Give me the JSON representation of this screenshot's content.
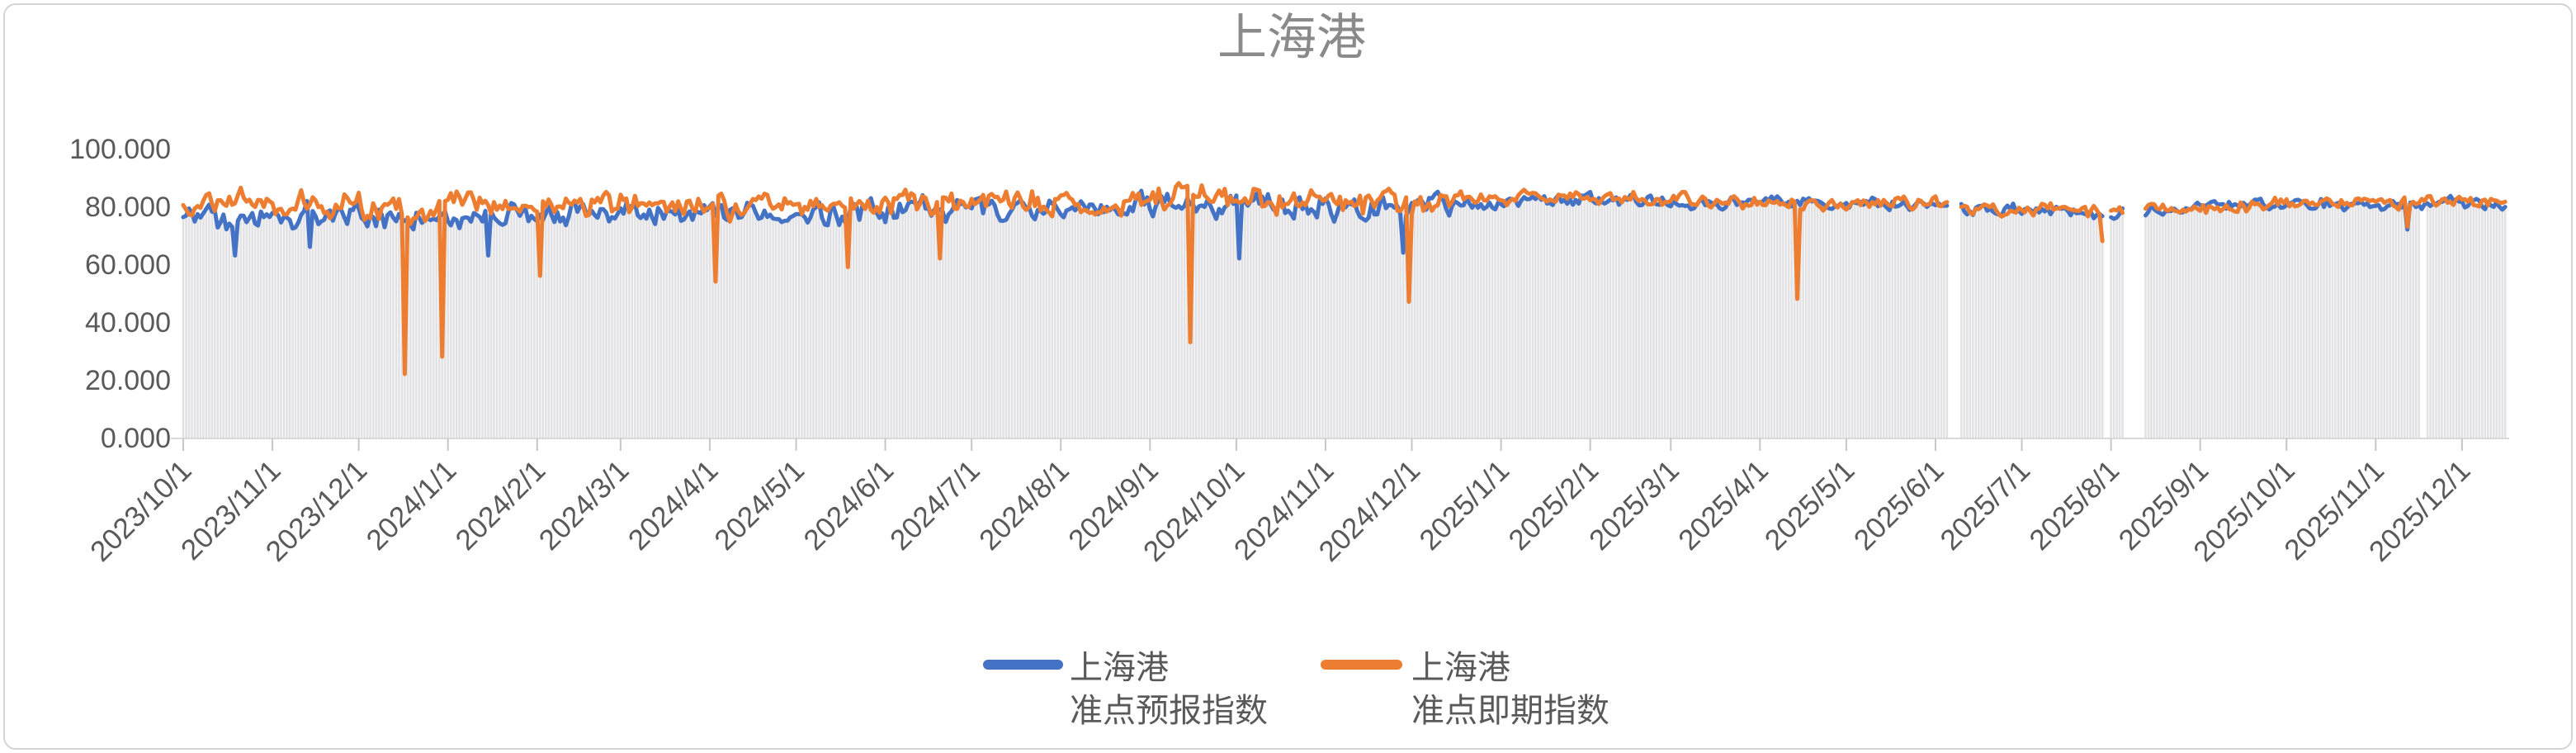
{
  "title": "上海港",
  "colors": {
    "forecast_blue": "#4472C4",
    "spot_orange": "#ED7D31",
    "bar_fill": "#E2E2E4",
    "bar_gap_white": "#FFFFFF",
    "axis_line": "#D9D9D9",
    "tick_mark": "#C6C6C6",
    "text_gray": "#595959",
    "title_gray": "#8A8A8A",
    "border_gray": "#D4D4D4"
  },
  "legend": {
    "items": [
      {
        "line1": "上海港",
        "line2": "准点预报指数",
        "color": "#4472C4"
      },
      {
        "line1": "上海港",
        "line2": "准点即期指数",
        "color": "#ED7D31"
      }
    ]
  },
  "chart_data": {
    "type": "line",
    "title": "上海港",
    "frequency": "daily",
    "x_start": "2023/10/1",
    "x_end": "2025/12/16",
    "ylim": [
      0,
      100
    ],
    "y_ticks": [
      100,
      80,
      60,
      40,
      20,
      0
    ],
    "y_tick_labels": [
      "100.000",
      "80.000",
      "60.000",
      "40.000",
      "20.000",
      "0.000"
    ],
    "x_tick_labels": [
      "2023/10/1",
      "2023/11/1",
      "2023/12/1",
      "2024/1/1",
      "2024/2/1",
      "2024/3/1",
      "2024/4/1",
      "2024/5/1",
      "2024/6/1",
      "2024/7/1",
      "2024/8/1",
      "2024/9/1",
      "2024/10/1",
      "2024/11/1",
      "2024/12/1",
      "2025/1/1",
      "2025/2/1",
      "2025/3/1",
      "2025/4/1",
      "2025/5/1",
      "2025/6/1",
      "2025/7/1",
      "2025/8/1",
      "2025/9/1",
      "2025/10/1",
      "2025/11/1",
      "2025/12/1"
    ],
    "legend_position": "bottom-center",
    "grid": false,
    "series": [
      {
        "key": "forecast",
        "name": "上海港 准点预报指数",
        "color": "#4472C4"
      },
      {
        "key": "spot",
        "name": "上海港 准点即期指数",
        "color": "#ED7D31"
      }
    ],
    "background_columns": "light gray striped daily columns from 0 up to the lower of the two line values",
    "monthly_anchors": [
      {
        "month": "2023/10",
        "forecast": 76,
        "spot": 81
      },
      {
        "month": "2023/11",
        "forecast": 78,
        "spot": 81
      },
      {
        "month": "2023/12",
        "forecast": 77,
        "spot": 79
      },
      {
        "month": "2024/1",
        "forecast": 77,
        "spot": 80
      },
      {
        "month": "2024/2",
        "forecast": 78,
        "spot": 80
      },
      {
        "month": "2024/3",
        "forecast": 79,
        "spot": 81
      },
      {
        "month": "2024/4",
        "forecast": 77,
        "spot": 80
      },
      {
        "month": "2024/5",
        "forecast": 78,
        "spot": 81
      },
      {
        "month": "2024/6",
        "forecast": 79,
        "spot": 81
      },
      {
        "month": "2024/7",
        "forecast": 80,
        "spot": 82
      },
      {
        "month": "2024/8",
        "forecast": 80,
        "spot": 81
      },
      {
        "month": "2024/9",
        "forecast": 81,
        "spot": 82
      },
      {
        "month": "2024/10",
        "forecast": 81,
        "spot": 83
      },
      {
        "month": "2024/11",
        "forecast": 79,
        "spot": 80
      },
      {
        "month": "2024/12",
        "forecast": 81,
        "spot": 82
      },
      {
        "month": "2025/1",
        "forecast": 82,
        "spot": 83
      },
      {
        "month": "2025/2",
        "forecast": 82.5,
        "spot": 83
      },
      {
        "month": "2025/3",
        "forecast": 81,
        "spot": 81.5
      },
      {
        "month": "2025/4",
        "forecast": 81,
        "spot": 81
      },
      {
        "month": "2025/5",
        "forecast": 81,
        "spot": 81.5
      },
      {
        "month": "2025/6",
        "forecast": 79,
        "spot": 79.5
      },
      {
        "month": "2025/7",
        "forecast": 78,
        "spot": 78
      },
      {
        "month": "2025/8",
        "forecast": 78,
        "spot": 78.5
      },
      {
        "month": "2025/9",
        "forecast": 80,
        "spot": 80.5
      },
      {
        "month": "2025/10",
        "forecast": 81.5,
        "spot": 82
      },
      {
        "month": "2025/11",
        "forecast": 80.5,
        "spot": 81
      },
      {
        "month": "2025/12",
        "forecast": 81,
        "spot": 82
      }
    ],
    "events": [
      {
        "date": "2023/10/19",
        "series": "forecast",
        "value": 63
      },
      {
        "date": "2023/11/14",
        "series": "forecast",
        "value": 66
      },
      {
        "date": "2023/12/17",
        "series": "spot",
        "value": 22
      },
      {
        "date": "2023/12/30",
        "series": "spot",
        "value": 28
      },
      {
        "date": "2024/1/15",
        "series": "forecast",
        "value": 63
      },
      {
        "date": "2024/2/2",
        "series": "spot",
        "value": 56
      },
      {
        "date": "2024/4/3",
        "series": "spot",
        "value": 54
      },
      {
        "date": "2024/5/19",
        "series": "spot",
        "value": 59
      },
      {
        "date": "2024/6/20",
        "series": "spot",
        "value": 62
      },
      {
        "date": "2024/9/15",
        "series": "spot",
        "value": 33
      },
      {
        "date": "2024/10/2",
        "series": "forecast",
        "value": 62
      },
      {
        "date": "2024/11/28",
        "series": "forecast",
        "value": 64
      },
      {
        "date": "2024/11/30",
        "series": "spot",
        "value": 47
      },
      {
        "date": "2025/4/14",
        "series": "spot",
        "value": 48
      },
      {
        "date": "2025/7/29",
        "series": "spot",
        "value": 68
      },
      {
        "date": "2025/11/12",
        "series": "forecast",
        "value": 72
      },
      {
        "date": "2025/11/12",
        "series": "spot",
        "value": 73
      }
    ],
    "gaps": [
      {
        "from": "2025/6/6",
        "to": "2025/6/9"
      },
      {
        "from": "2025/7/30",
        "to": "2025/7/31"
      },
      {
        "from": "2025/8/6",
        "to": "2025/8/12"
      }
    ],
    "bar_gaps": [
      {
        "from": "2025/11/17",
        "to": "2025/11/18"
      }
    ],
    "noise": {
      "seed": 20231001,
      "amp_early": 5.2,
      "amp_late": 2.6,
      "late_start": "2024/12/15"
    }
  }
}
